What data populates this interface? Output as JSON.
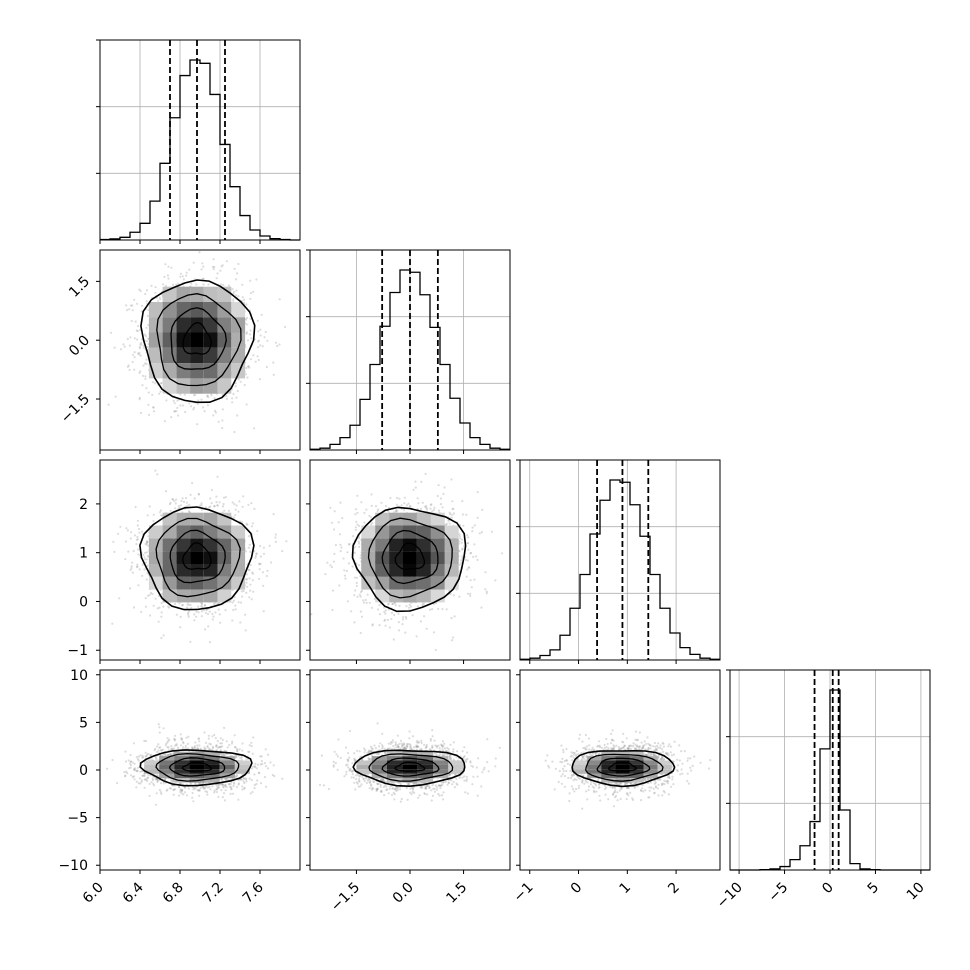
{
  "chart_data": {
    "type": "corner",
    "parameters": 4,
    "grid": true,
    "histograms": [
      {
        "param": 0,
        "range": [
          6.0,
          8.0
        ],
        "x_ticks": [
          "6.0",
          "6.4",
          "6.8",
          "7.2",
          "7.6"
        ],
        "x_tick_values": [
          6.0,
          6.4,
          6.8,
          7.2,
          7.6
        ],
        "quantiles": [
          6.7,
          6.97,
          7.25
        ],
        "bins": [
          6.0,
          6.1,
          6.2,
          6.3,
          6.4,
          6.5,
          6.6,
          6.7,
          6.8,
          6.9,
          7.0,
          7.1,
          7.2,
          7.3,
          7.4,
          7.5,
          7.6,
          7.7,
          7.8,
          7.9,
          8.0
        ],
        "counts": [
          2,
          5,
          12,
          35,
          75,
          175,
          345,
          550,
          740,
          810,
          795,
          655,
          430,
          240,
          110,
          45,
          18,
          6,
          2,
          0
        ]
      },
      {
        "param": 1,
        "range": [
          -2.8,
          2.8
        ],
        "x_ticks": [
          "-1.5",
          "0.0",
          "1.5"
        ],
        "x_tick_values": [
          -1.5,
          0.0,
          1.5
        ],
        "quantiles": [
          -0.78,
          0.0,
          0.78
        ],
        "bins": [
          -2.8,
          -2.52,
          -2.24,
          -1.96,
          -1.68,
          -1.4,
          -1.12,
          -0.84,
          -0.56,
          -0.28,
          0.0,
          0.28,
          0.56,
          0.84,
          1.12,
          1.4,
          1.68,
          1.96,
          2.24,
          2.52,
          2.8
        ],
        "counts": [
          3,
          8,
          25,
          55,
          110,
          225,
          380,
          550,
          700,
          800,
          790,
          690,
          545,
          380,
          230,
          120,
          55,
          25,
          8,
          3
        ]
      },
      {
        "param": 2,
        "range": [
          -1.2,
          2.9
        ],
        "x_ticks": [
          "-1",
          "0",
          "1",
          "2"
        ],
        "x_tick_values": [
          -1,
          0,
          1,
          2
        ],
        "quantiles": [
          0.38,
          0.9,
          1.43
        ],
        "bins": [
          -1.2,
          -0.995,
          -0.79,
          -0.585,
          -0.38,
          -0.175,
          0.03,
          0.235,
          0.44,
          0.645,
          0.85,
          1.055,
          1.26,
          1.465,
          1.67,
          1.875,
          2.08,
          2.285,
          2.49,
          2.695,
          2.9
        ],
        "counts": [
          3,
          8,
          20,
          45,
          110,
          230,
          380,
          560,
          710,
          800,
          790,
          690,
          550,
          380,
          230,
          120,
          55,
          25,
          8,
          3
        ]
      },
      {
        "param": 3,
        "range": [
          -11,
          11
        ],
        "x_ticks": [
          "-10",
          "-5",
          "0",
          "5",
          "10"
        ],
        "x_tick_values": [
          -10,
          -5,
          0,
          5,
          10
        ],
        "quantiles": [
          -1.7,
          0.3,
          0.95
        ],
        "bins": [
          -11,
          -9.9,
          -8.8,
          -7.7,
          -6.6,
          -5.5,
          -4.4,
          -3.3,
          -2.2,
          -1.1,
          0.0,
          1.1,
          2.2,
          3.3,
          4.4,
          5.5,
          6.6,
          7.7,
          8.8,
          9.9,
          11
        ],
        "counts": [
          0,
          0,
          0,
          3,
          10,
          30,
          90,
          210,
          420,
          1050,
          1560,
          520,
          55,
          10,
          3,
          0,
          0,
          0,
          0,
          0
        ]
      }
    ],
    "scatter_y_axes": {
      "1": {
        "ticks": [
          "1.5",
          "0.0",
          "-1.5"
        ],
        "tick_values": [
          1.5,
          0.0,
          -1.5
        ]
      },
      "2": {
        "ticks": [
          "2",
          "1",
          "0",
          "-1"
        ],
        "tick_values": [
          2,
          1,
          0,
          -1
        ]
      },
      "3": {
        "ticks": [
          "10",
          "5",
          "0",
          "-5",
          "-10"
        ],
        "tick_values": [
          10,
          5,
          0,
          -5,
          -10
        ]
      }
    },
    "correlation": "uncorrelated (round contours)",
    "contour_levels": 3,
    "colors": {
      "line": "#000000",
      "grid": "#b0b0b0",
      "points": "#9a9a9a"
    }
  }
}
